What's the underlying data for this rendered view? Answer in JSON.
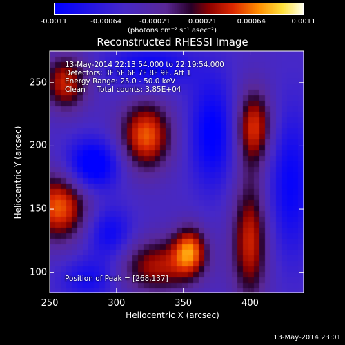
{
  "chart_data": {
    "type": "heatmap",
    "title": "Reconstructed RHESSI Image",
    "xlabel": "Heliocentric X (arcsec)",
    "ylabel": "Heliocentric Y (arcsec)",
    "xlim": [
      250,
      440
    ],
    "ylim": [
      84,
      275
    ],
    "x_ticks": [
      {
        "value": 250,
        "label": "250"
      },
      {
        "value": 300,
        "label": "300"
      },
      {
        "value": 350,
        "label": "350"
      },
      {
        "value": 400,
        "label": "400"
      }
    ],
    "y_ticks": [
      {
        "value": 100,
        "label": "100"
      },
      {
        "value": 150,
        "label": "150"
      },
      {
        "value": 200,
        "label": "200"
      },
      {
        "value": 250,
        "label": "250"
      }
    ],
    "colorbar": {
      "range": [
        -0.0011,
        0.0011
      ],
      "ticks": [
        {
          "value": -0.0011,
          "label": "-0.0011"
        },
        {
          "value": -0.00064,
          "label": "-0.00064"
        },
        {
          "value": -0.00021,
          "label": "-0.00021"
        },
        {
          "value": 0.00021,
          "label": "0.00021"
        },
        {
          "value": 0.00064,
          "label": "0.00064"
        },
        {
          "value": 0.0011,
          "label": "0.0011"
        }
      ],
      "units": "(photons cm⁻² s⁻¹ asec⁻²)"
    },
    "sources": [
      {
        "x": 322,
        "y": 208,
        "sx": 14,
        "sy": 20,
        "amp": 0.00105
      },
      {
        "x": 257,
        "y": 152,
        "sx": 16,
        "sy": 20,
        "amp": 0.00105
      },
      {
        "x": 355,
        "y": 118,
        "sx": 9,
        "sy": 14,
        "amp": 0.0009
      },
      {
        "x": 403,
        "y": 215,
        "sx": 10,
        "sy": 22,
        "amp": 0.00095
      },
      {
        "x": 400,
        "y": 125,
        "sx": 10,
        "sy": 35,
        "amp": 0.0009
      },
      {
        "x": 262,
        "y": 250,
        "sx": 12,
        "sy": 16,
        "amp": 0.0009
      },
      {
        "x": 330,
        "y": 105,
        "sx": 22,
        "sy": 16,
        "amp": 0.0008
      },
      {
        "x": 282,
        "y": 185,
        "sx": 14,
        "sy": 14,
        "amp": -0.0009
      },
      {
        "x": 372,
        "y": 210,
        "sx": 12,
        "sy": 30,
        "amp": -0.0007
      },
      {
        "x": 295,
        "y": 130,
        "sx": 12,
        "sy": 15,
        "amp": -0.0006
      },
      {
        "x": 430,
        "y": 170,
        "sx": 12,
        "sy": 40,
        "amp": -0.0006
      },
      {
        "x": 325,
        "y": 262,
        "sx": 22,
        "sy": 12,
        "amp": -0.0006
      },
      {
        "x": 280,
        "y": 95,
        "sx": 15,
        "sy": 12,
        "amp": -0.0005
      }
    ],
    "peak": {
      "x": 268,
      "y": 137
    }
  },
  "annotations": {
    "time_range": "13-May-2014 22:13:54.000 to 22:19:54.000",
    "detectors": "Detectors: 3F 5F 6F 7F 8F 9F, Att 1",
    "energy": "Energy Range: 25.0 - 50.0 keV",
    "clean": "Clean     Total counts: 3.85E+04",
    "peak": "Position of Peak = [268,137]"
  },
  "timestamp": "13-May-2014 23:01"
}
